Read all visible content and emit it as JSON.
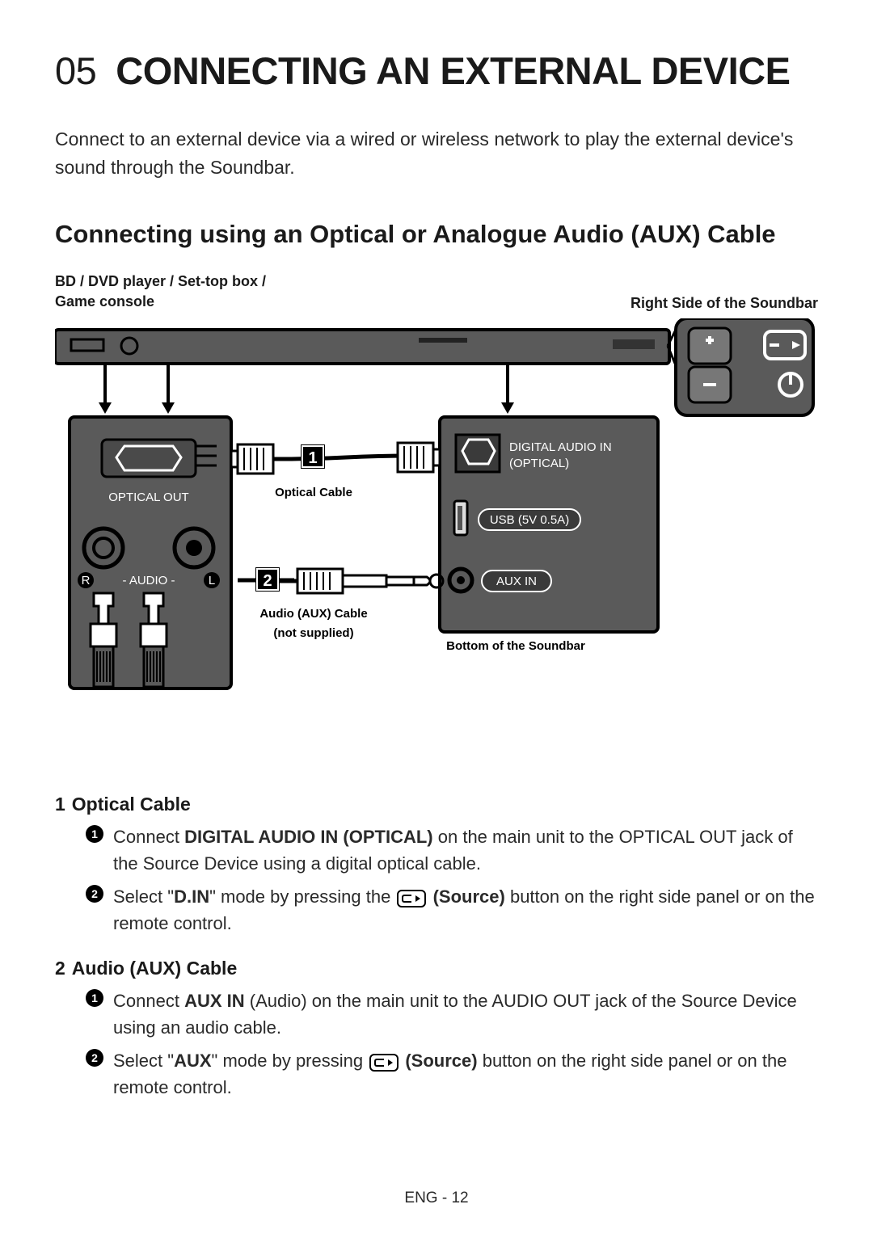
{
  "chapter": {
    "num": "05",
    "title": "CONNECTING AN EXTERNAL DEVICE"
  },
  "intro": "Connect to an external device via a wired or wireless network to play the external device's sound through the Soundbar.",
  "section_title": "Connecting using an Optical or Analogue Audio (AUX) Cable",
  "diagram_labels": {
    "source_device_line1": "BD / DVD player / Set-top box /",
    "source_device_line2": "Game console",
    "right_side": "Right Side of the Soundbar",
    "optical_out": "OPTICAL OUT",
    "audio_rl": "- AUDIO -",
    "r": "R",
    "l": "L",
    "digital_in_line1": "DIGITAL AUDIO IN",
    "digital_in_line2": "(OPTICAL)",
    "usb": "USB (5V 0.5A)",
    "aux_in": "AUX IN",
    "badge1": "1",
    "badge2": "2",
    "optical_cable": "Optical Cable",
    "aux_cable_line1": "Audio (AUX) Cable",
    "aux_cable_line2": "(not supplied)",
    "bottom_soundbar": "Bottom of the Soundbar"
  },
  "steps": [
    {
      "num": "1",
      "title": "Optical Cable",
      "items": [
        {
          "bullet": "1",
          "parts": [
            {
              "t": "Connect "
            },
            {
              "b": "DIGITAL AUDIO IN (OPTICAL)"
            },
            {
              "t": " on the main unit to the OPTICAL OUT jack of the Source Device using a digital optical cable."
            }
          ]
        },
        {
          "bullet": "2",
          "parts": [
            {
              "t": "Select \""
            },
            {
              "b": "D.IN"
            },
            {
              "t": "\" mode by pressing the "
            },
            {
              "icon": true
            },
            {
              "t": " "
            },
            {
              "b": "(Source)"
            },
            {
              "t": " button on the right side panel or on the remote control."
            }
          ]
        }
      ]
    },
    {
      "num": "2",
      "title": "Audio (AUX) Cable",
      "items": [
        {
          "bullet": "1",
          "parts": [
            {
              "t": "Connect "
            },
            {
              "b": "AUX IN"
            },
            {
              "t": " (Audio) on the main unit to the AUDIO OUT jack of the Source Device using an audio cable."
            }
          ]
        },
        {
          "bullet": "2",
          "parts": [
            {
              "t": "Select \""
            },
            {
              "b": "AUX"
            },
            {
              "t": "\" mode by pressing "
            },
            {
              "icon": true
            },
            {
              "t": " "
            },
            {
              "b": "(Source)"
            },
            {
              "t": " button on the right side panel or on the remote control."
            }
          ]
        }
      ]
    }
  ],
  "footer": "ENG - 12",
  "colors": {
    "panel_fill": "#5a5a5a",
    "panel_stroke": "#000000",
    "port_pill_bg": "#3a3a3a",
    "button_fill": "#808080"
  }
}
